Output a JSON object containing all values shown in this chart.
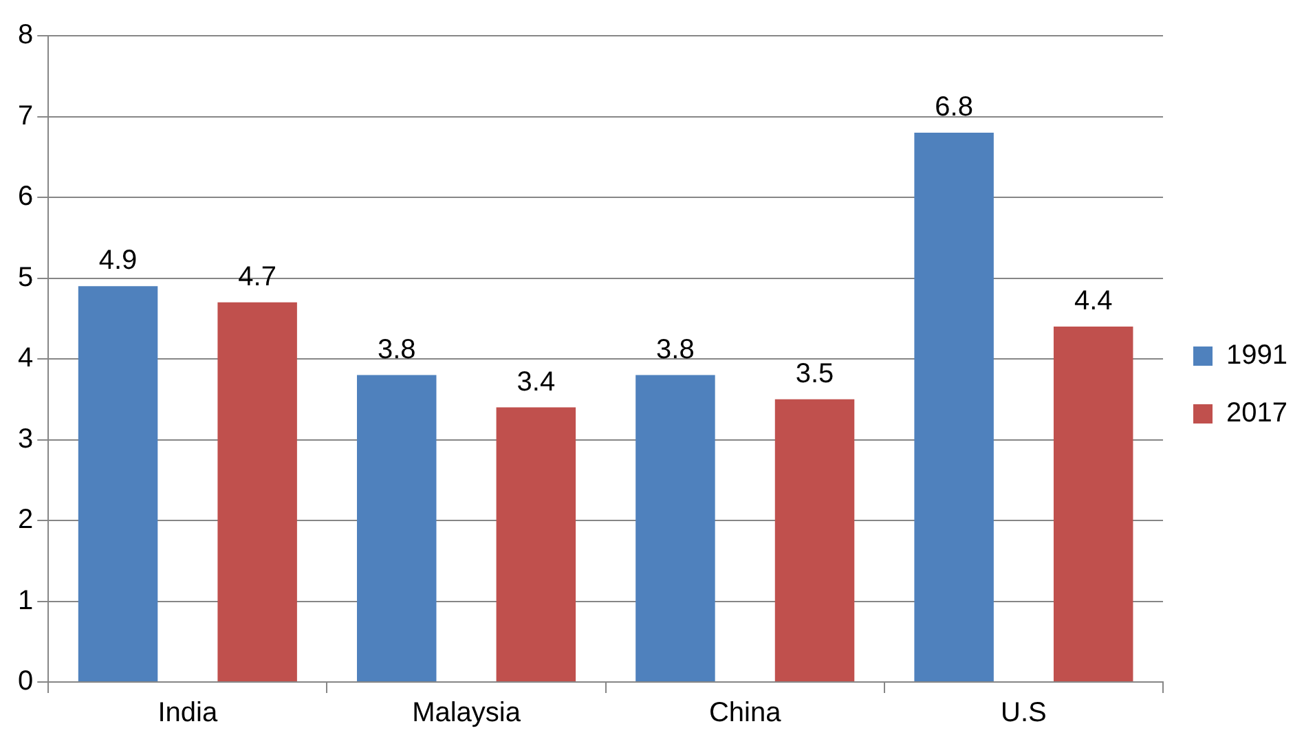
{
  "chart_data": {
    "type": "bar",
    "categories": [
      "India",
      "Malaysia",
      "China",
      "U.S"
    ],
    "series": [
      {
        "name": "1991",
        "color": "#4f81bd",
        "values": [
          4.9,
          3.8,
          3.8,
          6.8
        ]
      },
      {
        "name": "2017",
        "color": "#c0504d",
        "values": [
          4.7,
          3.4,
          3.5,
          4.4
        ]
      }
    ],
    "ylim": [
      0,
      8
    ],
    "yticks": [
      0,
      1,
      2,
      3,
      4,
      5,
      6,
      7,
      8
    ],
    "grid": "y",
    "legend": "right",
    "data_labels": true
  }
}
